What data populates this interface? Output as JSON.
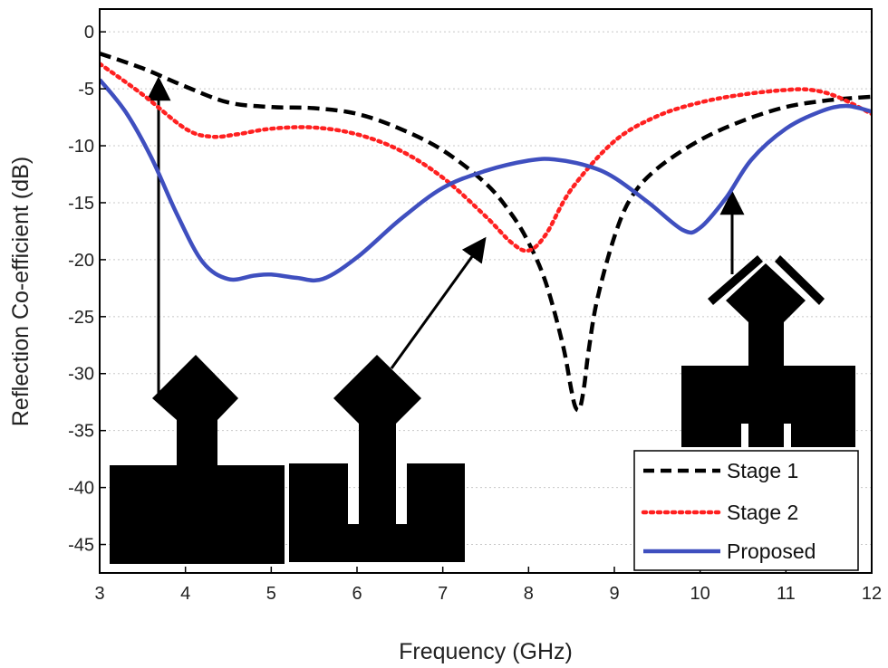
{
  "chart_data": {
    "type": "line",
    "xlabel": "Frequency (GHz)",
    "ylabel": "Reflection Co-efficient (dB)",
    "xlim": [
      3,
      12
    ],
    "ylim": [
      -47.5,
      2
    ],
    "xticks": [
      "3",
      "4",
      "5",
      "6",
      "7",
      "8",
      "9",
      "10",
      "11",
      "12"
    ],
    "yticks": [
      "0",
      "-5",
      "-10",
      "-15",
      "-20",
      "-25",
      "-30",
      "-35",
      "-40",
      "-45"
    ],
    "grid": "horizontal dotted",
    "legend_position": "bottom-right",
    "series": [
      {
        "name": "Stage 1",
        "color": "#000000",
        "style": "dashed",
        "points": [
          [
            3.0,
            -1.9
          ],
          [
            3.5,
            -3.2
          ],
          [
            4.0,
            -4.8
          ],
          [
            4.5,
            -6.2
          ],
          [
            5.0,
            -6.6
          ],
          [
            5.5,
            -6.7
          ],
          [
            6.0,
            -7.2
          ],
          [
            6.5,
            -8.5
          ],
          [
            7.0,
            -10.4
          ],
          [
            7.5,
            -13.3
          ],
          [
            7.8,
            -16.0
          ],
          [
            8.0,
            -18.5
          ],
          [
            8.2,
            -22.0
          ],
          [
            8.4,
            -27.5
          ],
          [
            8.5,
            -31.5
          ],
          [
            8.55,
            -33.0
          ],
          [
            8.6,
            -33.0
          ],
          [
            8.65,
            -31.0
          ],
          [
            8.7,
            -28.0
          ],
          [
            8.8,
            -23.5
          ],
          [
            9.0,
            -18.0
          ],
          [
            9.2,
            -14.5
          ],
          [
            9.5,
            -12.0
          ],
          [
            10.0,
            -9.5
          ],
          [
            10.5,
            -7.8
          ],
          [
            11.0,
            -6.6
          ],
          [
            11.5,
            -6.0
          ],
          [
            12.0,
            -5.7
          ]
        ]
      },
      {
        "name": "Stage 2",
        "color": "#ff2020",
        "style": "dotted",
        "points": [
          [
            3.0,
            -2.8
          ],
          [
            3.5,
            -5.5
          ],
          [
            4.0,
            -8.5
          ],
          [
            4.3,
            -9.2
          ],
          [
            4.6,
            -9.0
          ],
          [
            5.0,
            -8.5
          ],
          [
            5.5,
            -8.4
          ],
          [
            6.0,
            -9.0
          ],
          [
            6.5,
            -10.4
          ],
          [
            7.0,
            -12.8
          ],
          [
            7.5,
            -16.2
          ],
          [
            7.8,
            -18.5
          ],
          [
            8.0,
            -19.2
          ],
          [
            8.2,
            -17.8
          ],
          [
            8.5,
            -13.8
          ],
          [
            9.0,
            -9.6
          ],
          [
            9.5,
            -7.4
          ],
          [
            10.0,
            -6.2
          ],
          [
            10.5,
            -5.5
          ],
          [
            11.0,
            -5.1
          ],
          [
            11.3,
            -5.1
          ],
          [
            11.6,
            -5.7
          ],
          [
            12.0,
            -7.2
          ]
        ]
      },
      {
        "name": "Proposed",
        "color": "#3f4fbf",
        "style": "solid",
        "points": [
          [
            3.0,
            -4.2
          ],
          [
            3.3,
            -7.0
          ],
          [
            3.6,
            -11.0
          ],
          [
            3.9,
            -16.0
          ],
          [
            4.2,
            -20.2
          ],
          [
            4.5,
            -21.7
          ],
          [
            4.8,
            -21.4
          ],
          [
            5.0,
            -21.3
          ],
          [
            5.3,
            -21.6
          ],
          [
            5.6,
            -21.7
          ],
          [
            6.0,
            -19.8
          ],
          [
            6.5,
            -16.5
          ],
          [
            7.0,
            -13.7
          ],
          [
            7.5,
            -12.2
          ],
          [
            8.0,
            -11.3
          ],
          [
            8.3,
            -11.2
          ],
          [
            8.7,
            -11.8
          ],
          [
            9.0,
            -12.8
          ],
          [
            9.4,
            -15.0
          ],
          [
            9.8,
            -17.4
          ],
          [
            10.0,
            -17.2
          ],
          [
            10.3,
            -14.6
          ],
          [
            10.6,
            -11.2
          ],
          [
            11.0,
            -8.5
          ],
          [
            11.4,
            -7.0
          ],
          [
            11.7,
            -6.5
          ],
          [
            12.0,
            -7.0
          ]
        ]
      }
    ]
  }
}
